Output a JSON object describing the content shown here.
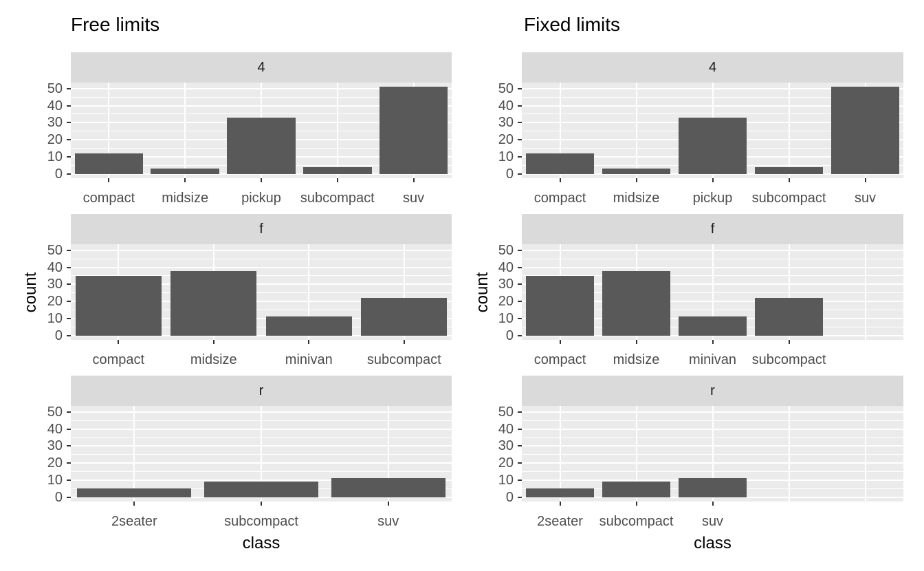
{
  "style": {
    "background": "#FFFFFF",
    "bar_fill": "#595959",
    "panel_bg": "#EBEBEB",
    "strip_bg": "#DADADA",
    "grid_color": "#FFFFFF",
    "axis_tick_color": "#333333",
    "tick_label_color": "#4D4D4D",
    "strip_label_color": "#1A1A1A",
    "title_color": "#000000"
  },
  "chart_data": [
    {
      "type": "bar",
      "title": "Free limits",
      "xlabel": "class",
      "ylabel": "count",
      "y_ticks": [
        0,
        10,
        20,
        30,
        40,
        50
      ],
      "ylim": [
        0,
        51
      ],
      "x_limits": "free",
      "x_slot_count": null,
      "grid": true,
      "legend": "none",
      "facets": [
        {
          "label": "4",
          "categories": [
            "compact",
            "midsize",
            "pickup",
            "subcompact",
            "suv"
          ],
          "values": [
            12,
            3,
            33,
            4,
            51
          ]
        },
        {
          "label": "f",
          "categories": [
            "compact",
            "midsize",
            "minivan",
            "subcompact"
          ],
          "values": [
            35,
            38,
            11,
            22
          ]
        },
        {
          "label": "r",
          "categories": [
            "2seater",
            "subcompact",
            "suv"
          ],
          "values": [
            5,
            9,
            11
          ]
        }
      ]
    },
    {
      "type": "bar",
      "title": "Fixed limits",
      "xlabel": "class",
      "ylabel": "count",
      "y_ticks": [
        0,
        10,
        20,
        30,
        40,
        50
      ],
      "ylim": [
        0,
        51
      ],
      "x_limits": "fixed",
      "x_slot_count": 5,
      "grid": true,
      "legend": "none",
      "facets": [
        {
          "label": "4",
          "categories": [
            "compact",
            "midsize",
            "pickup",
            "subcompact",
            "suv"
          ],
          "values": [
            12,
            3,
            33,
            4,
            51
          ]
        },
        {
          "label": "f",
          "categories": [
            "compact",
            "midsize",
            "minivan",
            "subcompact"
          ],
          "values": [
            35,
            38,
            11,
            22
          ]
        },
        {
          "label": "r",
          "categories": [
            "2seater",
            "subcompact",
            "suv"
          ],
          "values": [
            5,
            9,
            11
          ]
        }
      ]
    }
  ]
}
